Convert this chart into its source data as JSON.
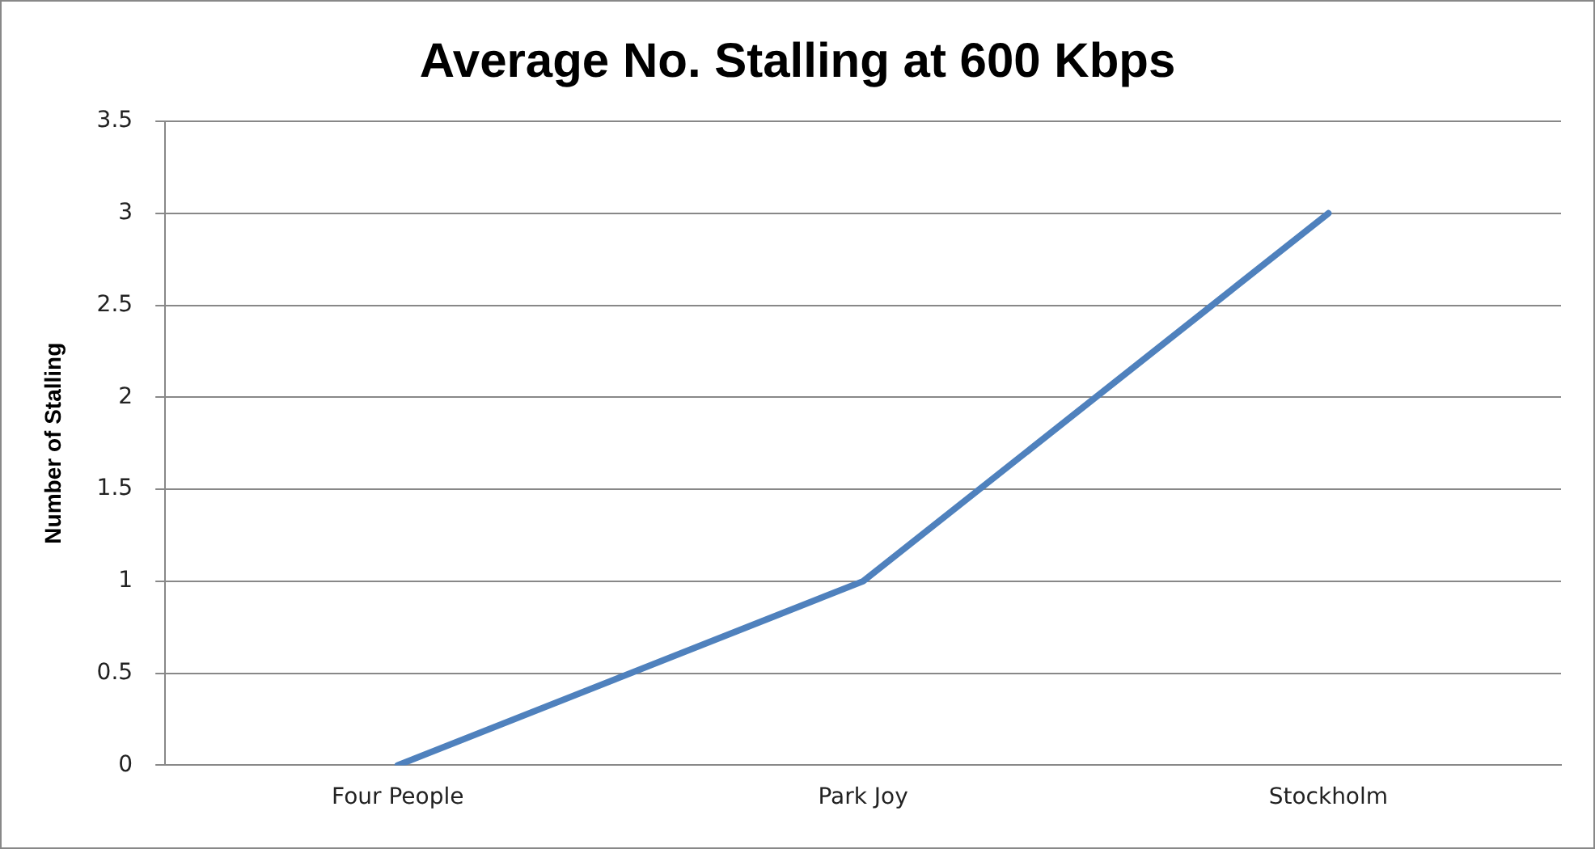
{
  "chart_data": {
    "type": "line",
    "title": "Average No. Stalling at 600 Kbps",
    "ylabel": "Number of Stalling",
    "categories": [
      "Four People",
      "Park Joy",
      "Stockholm"
    ],
    "series": [
      {
        "color": "#4f81bd",
        "values": [
          0,
          1,
          3
        ]
      }
    ],
    "ylim": [
      0,
      3.5
    ],
    "yticks": [
      0,
      0.5,
      1,
      1.5,
      2,
      2.5,
      3,
      3.5
    ],
    "grid": "y",
    "legend": false,
    "marker": "none",
    "line_style": "solid"
  }
}
